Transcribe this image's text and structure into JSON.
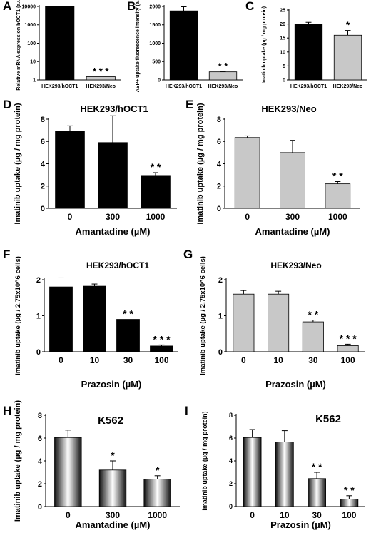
{
  "colors": {
    "black_bar": "#000000",
    "gray_bar": "#c8c8c8",
    "axis": "#000000",
    "cyl_dark": "#111111",
    "cyl_light": "#ffffff"
  },
  "chart_data": [
    {
      "panel": "A",
      "type": "bar",
      "title": "",
      "scale": "log",
      "categories": [
        "HEK293/hOCT1",
        "HEK293/Neo"
      ],
      "values": [
        10000,
        1.5
      ],
      "errors": [
        0,
        0
      ],
      "sig": [
        "",
        "* * *"
      ],
      "ylabel": "Relative mRNA expression hOCT1 (a.u.)",
      "ylim": [
        1,
        10000
      ],
      "yticks": [
        1,
        10,
        100,
        1000,
        10000
      ],
      "style": [
        "black",
        "gray"
      ],
      "xlabel": ""
    },
    {
      "panel": "B",
      "type": "bar",
      "title": "",
      "categories": [
        "HEK293/hOCT1",
        "HEK293/Neo"
      ],
      "values": [
        1880,
        220
      ],
      "errors": [
        110,
        15
      ],
      "sig": [
        "",
        "* *"
      ],
      "ylabel": "ASP+ uptake fluorescence intensity (a.u.)",
      "ylim": [
        0,
        2000
      ],
      "yticks": [
        0,
        500,
        1000,
        1500,
        2000
      ],
      "style": [
        "black",
        "gray"
      ],
      "xlabel": ""
    },
    {
      "panel": "C",
      "type": "bar",
      "title": "",
      "categories": [
        "HEK293/hOCT1",
        "HEK293/Neo"
      ],
      "values": [
        19.8,
        16
      ],
      "errors": [
        0.8,
        1.7
      ],
      "sig": [
        "",
        "*"
      ],
      "ylabel": "Imatinib uptake (µg / mg protein)",
      "ylim": [
        0,
        25
      ],
      "yticks": [
        0,
        5,
        10,
        15,
        20,
        25
      ],
      "style": [
        "black",
        "gray"
      ],
      "xlabel": ""
    },
    {
      "panel": "D",
      "type": "bar",
      "title": "HEK293/hOCT1",
      "categories": [
        "0",
        "300",
        "1000"
      ],
      "values": [
        6.9,
        5.9,
        2.95
      ],
      "errors": [
        0.5,
        2.4,
        0.25
      ],
      "sig": [
        "",
        "",
        "* *"
      ],
      "ylabel": "Imatinib uptake (µg / mg protein)",
      "ylim": [
        0,
        8
      ],
      "yticks": [
        0,
        2,
        4,
        6,
        8
      ],
      "style": [
        "black",
        "black",
        "black"
      ],
      "xlabel": "Amantadine (µM)"
    },
    {
      "panel": "E",
      "type": "bar",
      "title": "HEK293/Neo",
      "categories": [
        "0",
        "300",
        "1000"
      ],
      "values": [
        6.35,
        5.0,
        2.2
      ],
      "errors": [
        0.15,
        1.1,
        0.2
      ],
      "sig": [
        "",
        "",
        "* *"
      ],
      "ylabel": "Imatinib uptake (µg / mg protein)",
      "ylim": [
        0,
        8
      ],
      "yticks": [
        0,
        2,
        4,
        6,
        8
      ],
      "style": [
        "gray",
        "gray",
        "gray"
      ],
      "xlabel": "Amantadine (µM)"
    },
    {
      "panel": "F",
      "type": "bar",
      "title": "HEK293/hOCT1",
      "categories": [
        "0",
        "10",
        "30",
        "100"
      ],
      "values": [
        1.8,
        1.82,
        0.9,
        0.16
      ],
      "errors": [
        0.25,
        0.06,
        0,
        0.03
      ],
      "sig": [
        "",
        "",
        "* *",
        "* * *"
      ],
      "ylabel": "Imatinib uptake (µg / 2.75x10^6 cells)",
      "ylim": [
        0,
        2
      ],
      "yticks": [
        0,
        1,
        2
      ],
      "style": [
        "black",
        "black",
        "black",
        "black"
      ],
      "xlabel": "Prazosin (µM)"
    },
    {
      "panel": "G",
      "type": "bar",
      "title": "HEK293/Neo",
      "categories": [
        "0",
        "10",
        "30",
        "100"
      ],
      "values": [
        1.6,
        1.6,
        0.83,
        0.17
      ],
      "errors": [
        0.1,
        0.08,
        0.05,
        0.04
      ],
      "sig": [
        "",
        "",
        "* *",
        "* * *"
      ],
      "ylabel": "Imatinib uptake (µg / 2.75x10^6 cells)",
      "ylim": [
        0,
        2
      ],
      "yticks": [
        0,
        1,
        2
      ],
      "style": [
        "gray",
        "gray",
        "gray",
        "gray"
      ],
      "xlabel": "Prazosin (µM)"
    },
    {
      "panel": "H",
      "type": "bar",
      "title": "K562",
      "categories": [
        "0",
        "300",
        "1000"
      ],
      "values": [
        6.05,
        3.2,
        2.4
      ],
      "errors": [
        0.65,
        0.8,
        0.3
      ],
      "sig": [
        "",
        "*",
        "*"
      ],
      "ylabel": "Imatinib uptake (µg / mg protein)",
      "ylim": [
        0,
        8
      ],
      "yticks": [
        0,
        2,
        4,
        6,
        8
      ],
      "style": [
        "cylinder",
        "cylinder",
        "cylinder"
      ],
      "xlabel": "Amantadine (µM)"
    },
    {
      "panel": "I",
      "type": "bar",
      "title": "K562",
      "categories": [
        "0",
        "10",
        "30",
        "100"
      ],
      "values": [
        6.05,
        5.65,
        2.45,
        0.65
      ],
      "errors": [
        0.7,
        1.0,
        0.55,
        0.3
      ],
      "sig": [
        "",
        "",
        "* *",
        "* *"
      ],
      "ylabel": "Imatinib uptake (µg / mg protein)",
      "ylim": [
        0,
        8
      ],
      "yticks": [
        0,
        2,
        4,
        6,
        8
      ],
      "style": [
        "cylinder",
        "cylinder",
        "cylinder",
        "cylinder"
      ],
      "xlabel": "Prazosin (µM)"
    }
  ]
}
